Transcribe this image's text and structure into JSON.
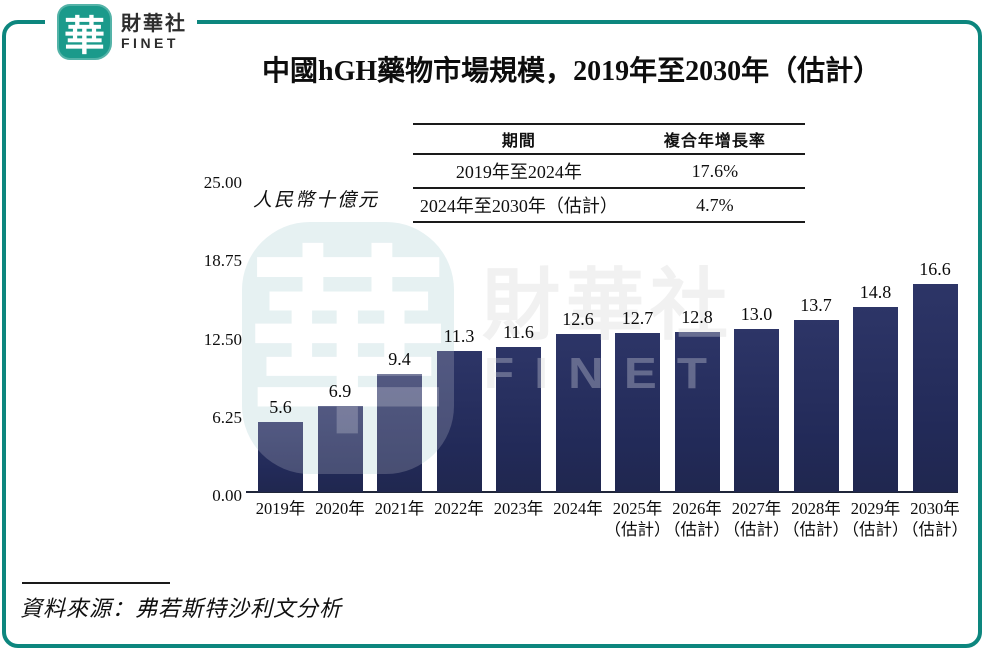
{
  "brand": {
    "seal_char": "華",
    "name_zh": "財華社",
    "name_en": "FINET",
    "teal_frame_color": "#0d867e",
    "teal_logo_color": "#1b9a8b"
  },
  "header": {
    "title": "中國hGH藥物市場規模，2019年至2030年（估計）"
  },
  "cagr_table": {
    "headers": [
      "期間",
      "複合年增長率"
    ],
    "rows": [
      {
        "period": "2019年至2024年",
        "cagr": "17.6%"
      },
      {
        "period": "2024年至2030年（估計）",
        "cagr": "4.7%"
      }
    ]
  },
  "chart_data": {
    "type": "bar",
    "title": "中國hGH藥物市場規模，2019年至2030年（估計）",
    "ylabel": "人民幣十億元",
    "xlabel": "",
    "categories": [
      "2019年",
      "2020年",
      "2021年",
      "2022年",
      "2023年",
      "2024年",
      "2025年（估計）",
      "2026年（估計）",
      "2027年（估計）",
      "2028年（估計）",
      "2029年（估計）",
      "2030年（估計）"
    ],
    "tick_lines": [
      [
        "2019年"
      ],
      [
        "2020年"
      ],
      [
        "2021年"
      ],
      [
        "2022年"
      ],
      [
        "2023年"
      ],
      [
        "2024年"
      ],
      [
        "2025年",
        "（估計）"
      ],
      [
        "2026年",
        "（估計）"
      ],
      [
        "2027年",
        "（估計）"
      ],
      [
        "2028年",
        "（估計）"
      ],
      [
        "2029年",
        "（估計）"
      ],
      [
        "2030年",
        "（估計）"
      ]
    ],
    "values": [
      5.6,
      6.9,
      9.4,
      11.3,
      11.6,
      12.6,
      12.7,
      12.8,
      13.0,
      13.7,
      14.8,
      16.6
    ],
    "ylim": [
      0,
      25
    ],
    "yticks": [
      25.0,
      18.75,
      12.5,
      6.25,
      0.0
    ],
    "grid": false,
    "legend": false,
    "bar_color": "#232a5c"
  },
  "watermark": {
    "seal_char": "華",
    "text_zh": "財華社",
    "text_en": "FINET"
  },
  "source": {
    "text": "資料來源：弗若斯特沙利文分析"
  }
}
